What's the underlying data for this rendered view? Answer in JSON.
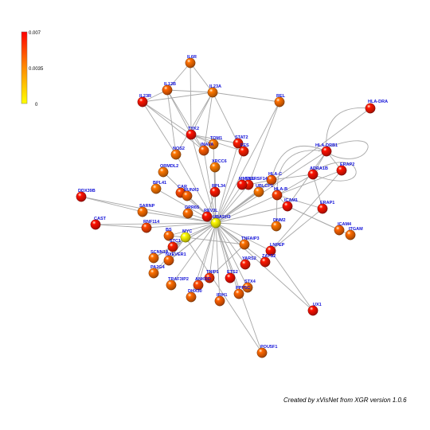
{
  "legend": {
    "max_label": "0.007",
    "mid_label": "0.0035",
    "min_label": "0",
    "colors": [
      "#ff0000",
      "#ff8c00",
      "#ffff00"
    ]
  },
  "credit": "Created by xVisNet from XGR version 1.0.6",
  "nodes": [
    {
      "id": "IL6R",
      "value": 0.0042
    },
    {
      "id": "IL12B",
      "value": 0.0045
    },
    {
      "id": "IL23A",
      "value": 0.004
    },
    {
      "id": "IL23R",
      "value": 0.0065
    },
    {
      "id": "REL",
      "value": 0.0042
    },
    {
      "id": "HLA-DRA",
      "value": 0.0064
    },
    {
      "id": "TYK2",
      "value": 0.0066
    },
    {
      "id": "TOM1",
      "value": 0.004
    },
    {
      "id": "INAVA",
      "value": 0.0047
    },
    {
      "id": "STAT2",
      "value": 0.0063
    },
    {
      "id": "FES",
      "value": 0.0062
    },
    {
      "id": "NOS2",
      "value": 0.0041
    },
    {
      "id": "HLA-DRB1",
      "value": 0.0066
    },
    {
      "id": "ERAP2",
      "value": 0.0065
    },
    {
      "id": "ORMDL2",
      "value": 0.004
    },
    {
      "id": "XRCC6",
      "value": 0.0039
    },
    {
      "id": "ADRA1B",
      "value": 0.0066
    },
    {
      "id": "HLA-C",
      "value": 0.0047
    },
    {
      "id": "TNFRSF14",
      "value": 0.0063
    },
    {
      "id": "UBLCP1",
      "value": 0.004
    },
    {
      "id": "MMEL1",
      "value": 0.0066
    },
    {
      "id": "BPL41",
      "value": 0.004
    },
    {
      "id": "CAR",
      "value": 0.0052
    },
    {
      "id": "RUNX3",
      "value": 0.0045
    },
    {
      "id": "RPL34",
      "value": 0.0064
    },
    {
      "id": "HLA-B",
      "value": 0.0055
    },
    {
      "id": "ICAM1",
      "value": 0.0066
    },
    {
      "id": "DDX39B",
      "value": 0.0066
    },
    {
      "id": "ERAP1",
      "value": 0.0065
    },
    {
      "id": "SARNP",
      "value": 0.0042
    },
    {
      "id": "GPR65",
      "value": 0.0043
    },
    {
      "id": "REV3L",
      "value": 0.0065
    },
    {
      "id": "UBASH3",
      "value": 0.0001
    },
    {
      "id": "CAST",
      "value": 0.0066
    },
    {
      "id": "RNF114",
      "value": 0.0053
    },
    {
      "id": "DNM2",
      "value": 0.0041
    },
    {
      "id": "ICAM4",
      "value": 0.0045
    },
    {
      "id": "ITGAM",
      "value": 0.0043
    },
    {
      "id": "BS",
      "value": 0.0044
    },
    {
      "id": "MYC",
      "value": 0.0001
    },
    {
      "id": "TNFAIP3",
      "value": 0.0042
    },
    {
      "id": "STC1",
      "value": 0.0062
    },
    {
      "id": "SCNN1A",
      "value": 0.0043
    },
    {
      "id": "NXEVER1",
      "value": 0.0045
    },
    {
      "id": "LNPEP",
      "value": 0.0065
    },
    {
      "id": "YARS2",
      "value": 0.0063
    },
    {
      "id": "ZAYS2",
      "value": 0.0064
    },
    {
      "id": "PA2G4",
      "value": 0.0042
    },
    {
      "id": "TNIP1",
      "value": 0.0058
    },
    {
      "id": "TRAF3IP2",
      "value": 0.0043
    },
    {
      "id": "ANKRD",
      "value": 0.0052
    },
    {
      "id": "ETS2",
      "value": 0.0066
    },
    {
      "id": "STX4",
      "value": 0.0043
    },
    {
      "id": "PPP5C",
      "value": 0.0045
    },
    {
      "id": "DHX30",
      "value": 0.0044
    },
    {
      "id": "IFIH1",
      "value": 0.0046
    },
    {
      "id": "UX1",
      "value": 0.0066
    },
    {
      "id": "POU5F1",
      "value": 0.0044
    }
  ],
  "edges": [
    [
      "IL6R",
      "IL12B"
    ],
    [
      "IL6R",
      "IL23A"
    ],
    [
      "IL6R",
      "TYK2"
    ],
    [
      "IL12B",
      "IL23A"
    ],
    [
      "IL12B",
      "IL23R"
    ],
    [
      "IL12B",
      "TYK2"
    ],
    [
      "IL12B",
      "NOS2"
    ],
    [
      "IL12B",
      "INAVA"
    ],
    [
      "IL23A",
      "IL23R"
    ],
    [
      "IL23A",
      "TYK2"
    ],
    [
      "IL23A",
      "REL"
    ],
    [
      "IL23A",
      "INAVA"
    ],
    [
      "IL23A",
      "STAT2"
    ],
    [
      "IL23A",
      "NOS2"
    ],
    [
      "IL23R",
      "TYK2"
    ],
    [
      "IL23R",
      "INAVA"
    ],
    [
      "IL23R",
      "NOS2"
    ],
    [
      "TYK2",
      "STAT2"
    ],
    [
      "TYK2",
      "FES"
    ],
    [
      "TYK2",
      "INAVA"
    ],
    [
      "TYK2",
      "UBASH3"
    ],
    [
      "TYK2",
      "TOM1"
    ],
    [
      "REL",
      "UBASH3"
    ],
    [
      "REL",
      "TNFRSF14"
    ],
    [
      "HLA-DRA",
      "HLA-DRB1"
    ],
    [
      "HLA-DRA",
      "UBASH3"
    ],
    [
      "HLA-DRB1",
      "ERAP2"
    ],
    [
      "HLA-DRB1",
      "ADRA1B"
    ],
    [
      "HLA-DRB1",
      "HLA-C"
    ],
    [
      "HLA-DRB1",
      "HLA-B"
    ],
    [
      "HLA-DRB1",
      "UBASH3"
    ],
    [
      "HLA-DRB1",
      "ICAM1"
    ],
    [
      "ADRA1B",
      "HLA-C"
    ],
    [
      "ADRA1B",
      "HLA-B"
    ],
    [
      "ADRA1B",
      "ERAP1"
    ],
    [
      "HLA-C",
      "HLA-B"
    ],
    [
      "HLA-C",
      "UBASH3"
    ],
    [
      "HLA-C",
      "TNFRSF14"
    ],
    [
      "HLA-B",
      "ICAM1"
    ],
    [
      "HLA-B",
      "UBASH3"
    ],
    [
      "HLA-B",
      "ERAP1"
    ],
    [
      "HLA-B",
      "ERAP2"
    ],
    [
      "HLA-B",
      "DNM2"
    ],
    [
      "ICAM1",
      "ICAM4"
    ],
    [
      "ICAM1",
      "ITGAM"
    ],
    [
      "ICAM1",
      "UBASH3"
    ],
    [
      "STAT2",
      "UBASH3"
    ],
    [
      "FES",
      "UBASH3"
    ],
    [
      "TOM1",
      "UBASH3"
    ],
    [
      "INAVA",
      "UBASH3"
    ],
    [
      "NOS2",
      "UBASH3"
    ],
    [
      "XRCC6",
      "UBASH3"
    ],
    [
      "XRCC6",
      "RPL34"
    ],
    [
      "TNFRSF14",
      "UBASH3"
    ],
    [
      "UBLCP1",
      "UBASH3"
    ],
    [
      "MMEL1",
      "UBASH3"
    ],
    [
      "MMEL1",
      "TNFRSF14"
    ],
    [
      "RPL34",
      "UBASH3"
    ],
    [
      "RPL34",
      "REV3L"
    ],
    [
      "CAR",
      "UBASH3"
    ],
    [
      "RUNX3",
      "UBASH3"
    ],
    [
      "BPL41",
      "UBASH3"
    ],
    [
      "ORMDL2",
      "UBASH3"
    ],
    [
      "GPR65",
      "UBASH3"
    ],
    [
      "REV3L",
      "UBASH3"
    ],
    [
      "DDX39B",
      "SARNP"
    ],
    [
      "DDX39B",
      "UBASH3"
    ],
    [
      "SARNP",
      "UBASH3"
    ],
    [
      "CAST",
      "UBASH3"
    ],
    [
      "CAST",
      "RNF114"
    ],
    [
      "RNF114",
      "UBASH3"
    ],
    [
      "DNM2",
      "UBASH3"
    ],
    [
      "MYC",
      "UBASH3"
    ],
    [
      "MYC",
      "BS"
    ],
    [
      "MYC",
      "STC1"
    ],
    [
      "MYC",
      "SCNN1A"
    ],
    [
      "MYC",
      "NXEVER1"
    ],
    [
      "MYC",
      "PA2G4"
    ],
    [
      "MYC",
      "TNFAIP3"
    ],
    [
      "BS",
      "UBASH3"
    ],
    [
      "STC1",
      "UBASH3"
    ],
    [
      "SCNN1A",
      "UBASH3"
    ],
    [
      "NXEVER1",
      "UBASH3"
    ],
    [
      "PA2G4",
      "UBASH3"
    ],
    [
      "TNFAIP3",
      "UBASH3"
    ],
    [
      "TNFAIP3",
      "TNIP1"
    ],
    [
      "LNPEP",
      "UBASH3"
    ],
    [
      "LNPEP",
      "ERAP1"
    ],
    [
      "LNPEP",
      "ERAP2"
    ],
    [
      "LNPEP",
      "UX1"
    ],
    [
      "YARS2",
      "UBASH3"
    ],
    [
      "ZAYS2",
      "UBASH3"
    ],
    [
      "TNIP1",
      "UBASH3"
    ],
    [
      "TRAF3IP2",
      "UBASH3"
    ],
    [
      "ANKRD",
      "UBASH3"
    ],
    [
      "ETS2",
      "UBASH3"
    ],
    [
      "STX4",
      "UBASH3"
    ],
    [
      "PPP5C",
      "UBASH3"
    ],
    [
      "DHX30",
      "UBASH3"
    ],
    [
      "IFIH1",
      "UBASH3"
    ],
    [
      "UX1",
      "UBASH3"
    ],
    [
      "POU5F1",
      "UBASH3"
    ],
    [
      "POU5F1",
      "MYC"
    ]
  ],
  "curved_edges": [
    [
      "HLA-DRA",
      "HLA-DRB1"
    ],
    [
      "HLA-DRB1",
      "HLA-B"
    ],
    [
      "HLA-DRB1",
      "HLA-C"
    ]
  ]
}
